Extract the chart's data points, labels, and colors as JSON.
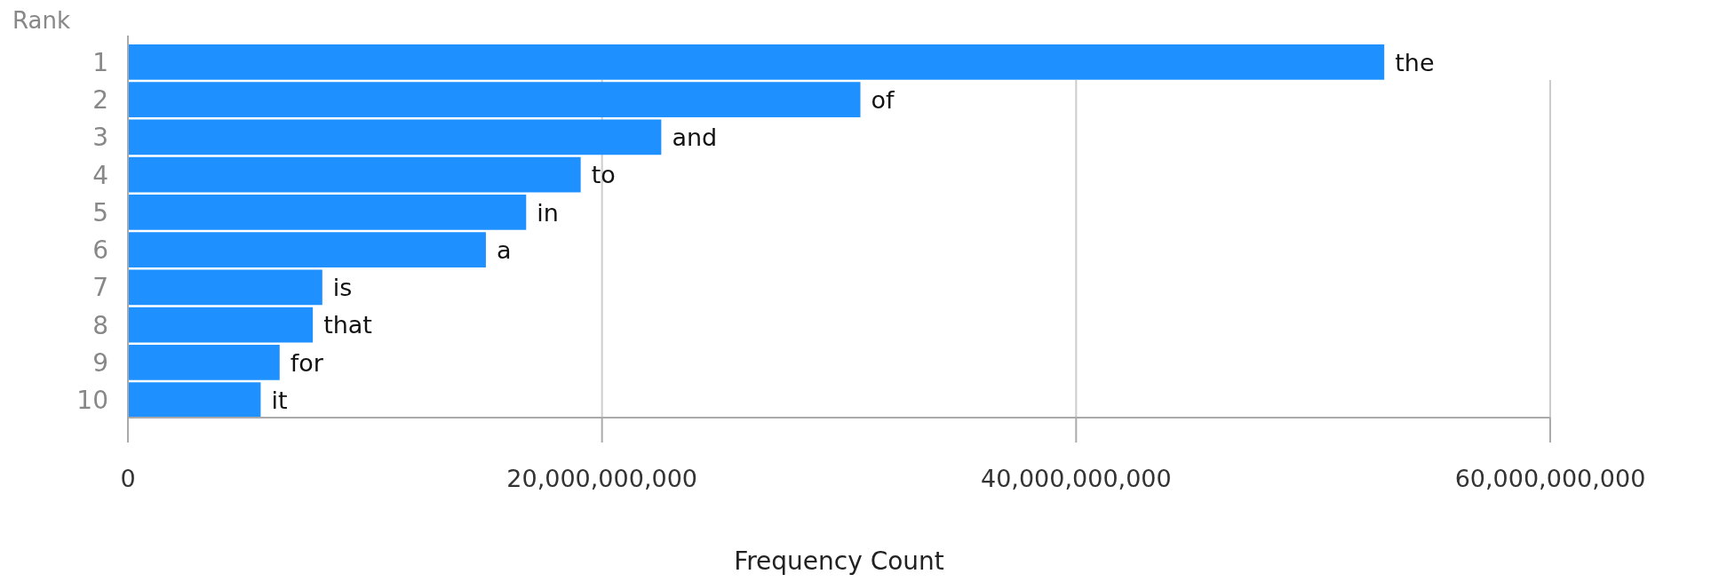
{
  "chart_data": {
    "type": "bar",
    "orientation": "horizontal",
    "ylabel": "Rank",
    "xlabel": "Frequency Count",
    "categories": [
      "1",
      "2",
      "3",
      "4",
      "5",
      "6",
      "7",
      "8",
      "9",
      "10"
    ],
    "values": [
      53000000000,
      30900000000,
      22500000000,
      19100000000,
      16800000000,
      15100000000,
      8200000000,
      7800000000,
      6400000000,
      5600000000
    ],
    "color": "#1e90ff",
    "xlim": [
      0,
      60000000000
    ],
    "xticks": [
      0,
      {
        "value": 20000000000,
        "label": "20,000,000,000"
      },
      {
        "value": 40000000000,
        "label": "40,000,000,000"
      },
      {
        "value": 60000000000,
        "label": "60,000,000,000"
      }
    ],
    "grid": "x",
    "annotations": [
      {
        "text": "the",
        "x": 53000000000,
        "y": "1"
      },
      {
        "text": "of",
        "x": 30900000000,
        "y": "2"
      },
      {
        "text": "and",
        "x": 22500000000,
        "y": "3"
      },
      {
        "text": "to",
        "x": 19100000000,
        "y": "4"
      },
      {
        "text": "in",
        "x": 16800000000,
        "y": "5"
      },
      {
        "text": "a",
        "x": 15100000000,
        "y": "6"
      },
      {
        "text": "is",
        "x": 8200000000,
        "y": "7"
      },
      {
        "text": "that",
        "x": 7800000000,
        "y": "8"
      },
      {
        "text": "for",
        "x": 6400000000,
        "y": "9"
      },
      {
        "text": "it",
        "x": 5600000000,
        "y": "10"
      }
    ]
  }
}
